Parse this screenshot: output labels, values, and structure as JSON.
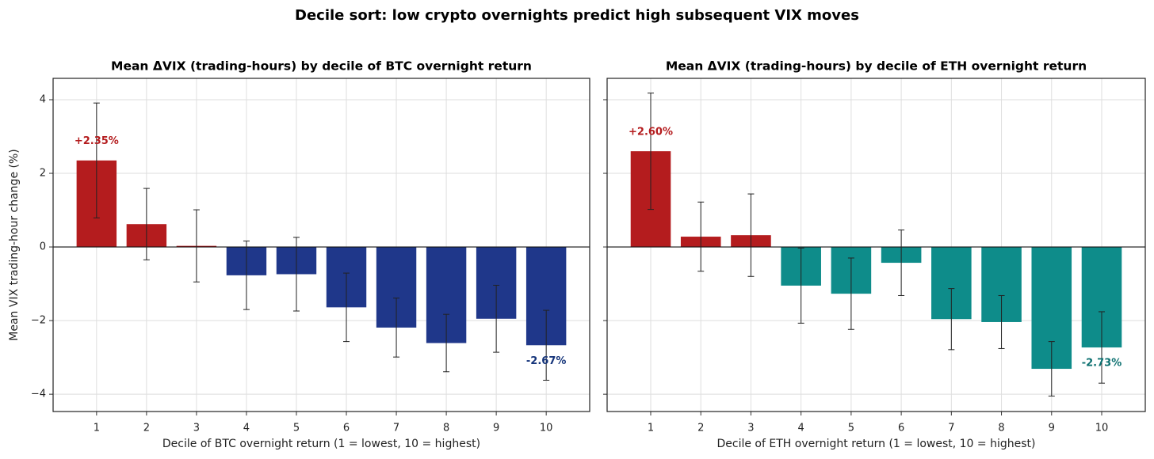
{
  "title": "Decile sort: low crypto overnights predict high subsequent VIX moves",
  "chart_data": [
    {
      "type": "bar",
      "title": "Mean ΔVIX (trading-hours) by decile of BTC overnight return",
      "xlabel": "Decile of BTC overnight return  (1 = lowest, 10 = highest)",
      "ylabel": "Mean VIX trading-hour change (%)",
      "x": [
        1,
        2,
        3,
        4,
        5,
        6,
        7,
        8,
        9,
        10
      ],
      "values": [
        2.35,
        0.62,
        0.03,
        -0.77,
        -0.74,
        -1.64,
        -2.19,
        -2.61,
        -1.95,
        -2.67
      ],
      "errors": [
        1.56,
        0.97,
        0.98,
        0.93,
        1.0,
        0.93,
        0.8,
        0.78,
        0.91,
        0.95
      ],
      "value_labels": [
        "+2.35%",
        null,
        null,
        null,
        null,
        null,
        null,
        null,
        null,
        "-2.67%"
      ],
      "colors": [
        "#b41c1e",
        "#b41c1e",
        "#b41c1e",
        "#1f378a",
        "#1f378a",
        "#1f378a",
        "#1f378a",
        "#1f378a",
        "#1f378a",
        "#1f378a"
      ],
      "label_colors": [
        "#b41c1e",
        null,
        null,
        null,
        null,
        null,
        null,
        null,
        null,
        "#15347a"
      ],
      "xlim": [
        0.13,
        10.87
      ],
      "xticks": [
        1,
        2,
        3,
        4,
        5,
        6,
        7,
        8,
        9,
        10
      ],
      "ylim": [
        -4.47,
        4.58
      ],
      "yticks": [
        {
          "value": -4,
          "label": "−4"
        },
        {
          "value": -2,
          "label": "−2"
        },
        0,
        2,
        4
      ],
      "grid": true
    },
    {
      "type": "bar",
      "title": "Mean ΔVIX (trading-hours) by decile of ETH overnight return",
      "xlabel": "Decile of ETH overnight return  (1 = lowest, 10 = highest)",
      "x": [
        1,
        2,
        3,
        4,
        5,
        6,
        7,
        8,
        9,
        10
      ],
      "values": [
        2.6,
        0.28,
        0.32,
        -1.05,
        -1.27,
        -0.43,
        -1.96,
        -2.04,
        -3.31,
        -2.73
      ],
      "errors": [
        1.58,
        0.94,
        1.12,
        1.02,
        0.97,
        0.89,
        0.83,
        0.72,
        0.74,
        0.97
      ],
      "value_labels": [
        "+2.60%",
        null,
        null,
        null,
        null,
        null,
        null,
        null,
        null,
        "-2.73%"
      ],
      "colors": [
        "#b41c1e",
        "#b41c1e",
        "#b41c1e",
        "#0e8c8a",
        "#0e8c8a",
        "#0e8c8a",
        "#0e8c8a",
        "#0e8c8a",
        "#0e8c8a",
        "#0e8c8a"
      ],
      "label_colors": [
        "#b41c1e",
        null,
        null,
        null,
        null,
        null,
        null,
        null,
        null,
        "#0c7070"
      ],
      "xlim": [
        0.13,
        10.87
      ],
      "xticks": [
        1,
        2,
        3,
        4,
        5,
        6,
        7,
        8,
        9,
        10
      ],
      "ylim": [
        -4.47,
        4.58
      ],
      "yticks": [
        -4,
        -2,
        0,
        2,
        4
      ],
      "grid": true
    }
  ]
}
